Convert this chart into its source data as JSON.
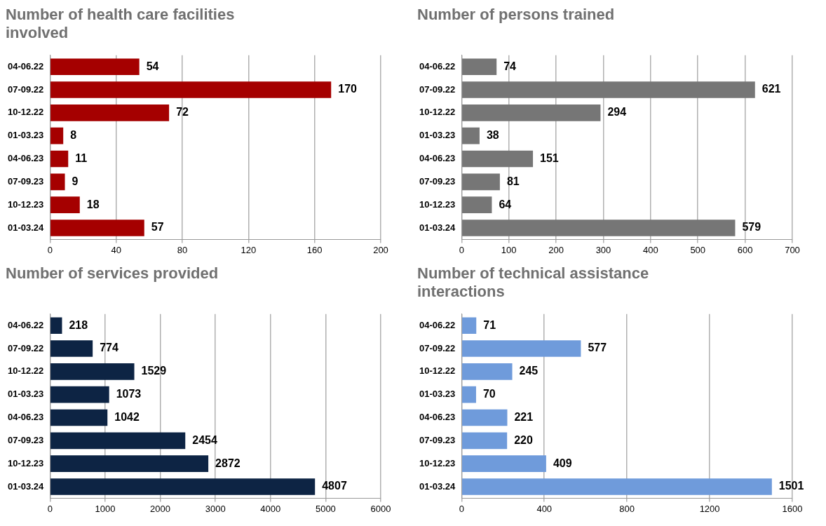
{
  "chart_data": [
    {
      "type": "bar",
      "orientation": "horizontal",
      "title": "Number of health care facilities involved",
      "categories": [
        "04-06.22",
        "07-09.22",
        "10-12.22",
        "01-03.23",
        "04-06.23",
        "07-09.23",
        "10-12.23",
        "01-03.24"
      ],
      "values": [
        54,
        170,
        72,
        8,
        11,
        9,
        18,
        57
      ],
      "color": "#a50000",
      "xlim": [
        0,
        200
      ],
      "xticks": [
        0,
        40,
        80,
        120,
        160,
        200
      ],
      "grid": "x",
      "data_labels": true
    },
    {
      "type": "bar",
      "orientation": "horizontal",
      "title": "Number of persons trained",
      "categories": [
        "04-06.22",
        "07-09.22",
        "10-12.22",
        "01-03.23",
        "04-06.23",
        "07-09.23",
        "10-12.23",
        "01-03.24"
      ],
      "values": [
        74,
        621,
        294,
        38,
        151,
        81,
        64,
        579
      ],
      "color": "#767676",
      "xlim": [
        0,
        700
      ],
      "xticks": [
        0,
        100,
        200,
        300,
        400,
        500,
        600,
        700
      ],
      "grid": "x",
      "data_labels": true
    },
    {
      "type": "bar",
      "orientation": "horizontal",
      "title": "Number of services provided",
      "categories": [
        "04-06.22",
        "07-09.22",
        "10-12.22",
        "01-03.23",
        "04-06.23",
        "07-09.23",
        "10-12.23",
        "01-03.24"
      ],
      "values": [
        218,
        774,
        1529,
        1073,
        1042,
        2454,
        2872,
        4807
      ],
      "color": "#0d2444",
      "xlim": [
        0,
        6000
      ],
      "xticks": [
        0,
        1000,
        2000,
        3000,
        4000,
        5000,
        6000
      ],
      "grid": "x",
      "data_labels": true
    },
    {
      "type": "bar",
      "orientation": "horizontal",
      "title": "Number of technical assistance interactions",
      "categories": [
        "04-06.22",
        "07-09.22",
        "10-12.22",
        "01-03.23",
        "04-06.23",
        "07-09.23",
        "10-12.23",
        "01-03.24"
      ],
      "values": [
        71,
        577,
        245,
        70,
        221,
        220,
        409,
        1501
      ],
      "color": "#6f9bdb",
      "xlim": [
        0,
        1600
      ],
      "xticks": [
        0,
        400,
        800,
        1200,
        1600
      ],
      "grid": "x",
      "data_labels": true
    }
  ]
}
